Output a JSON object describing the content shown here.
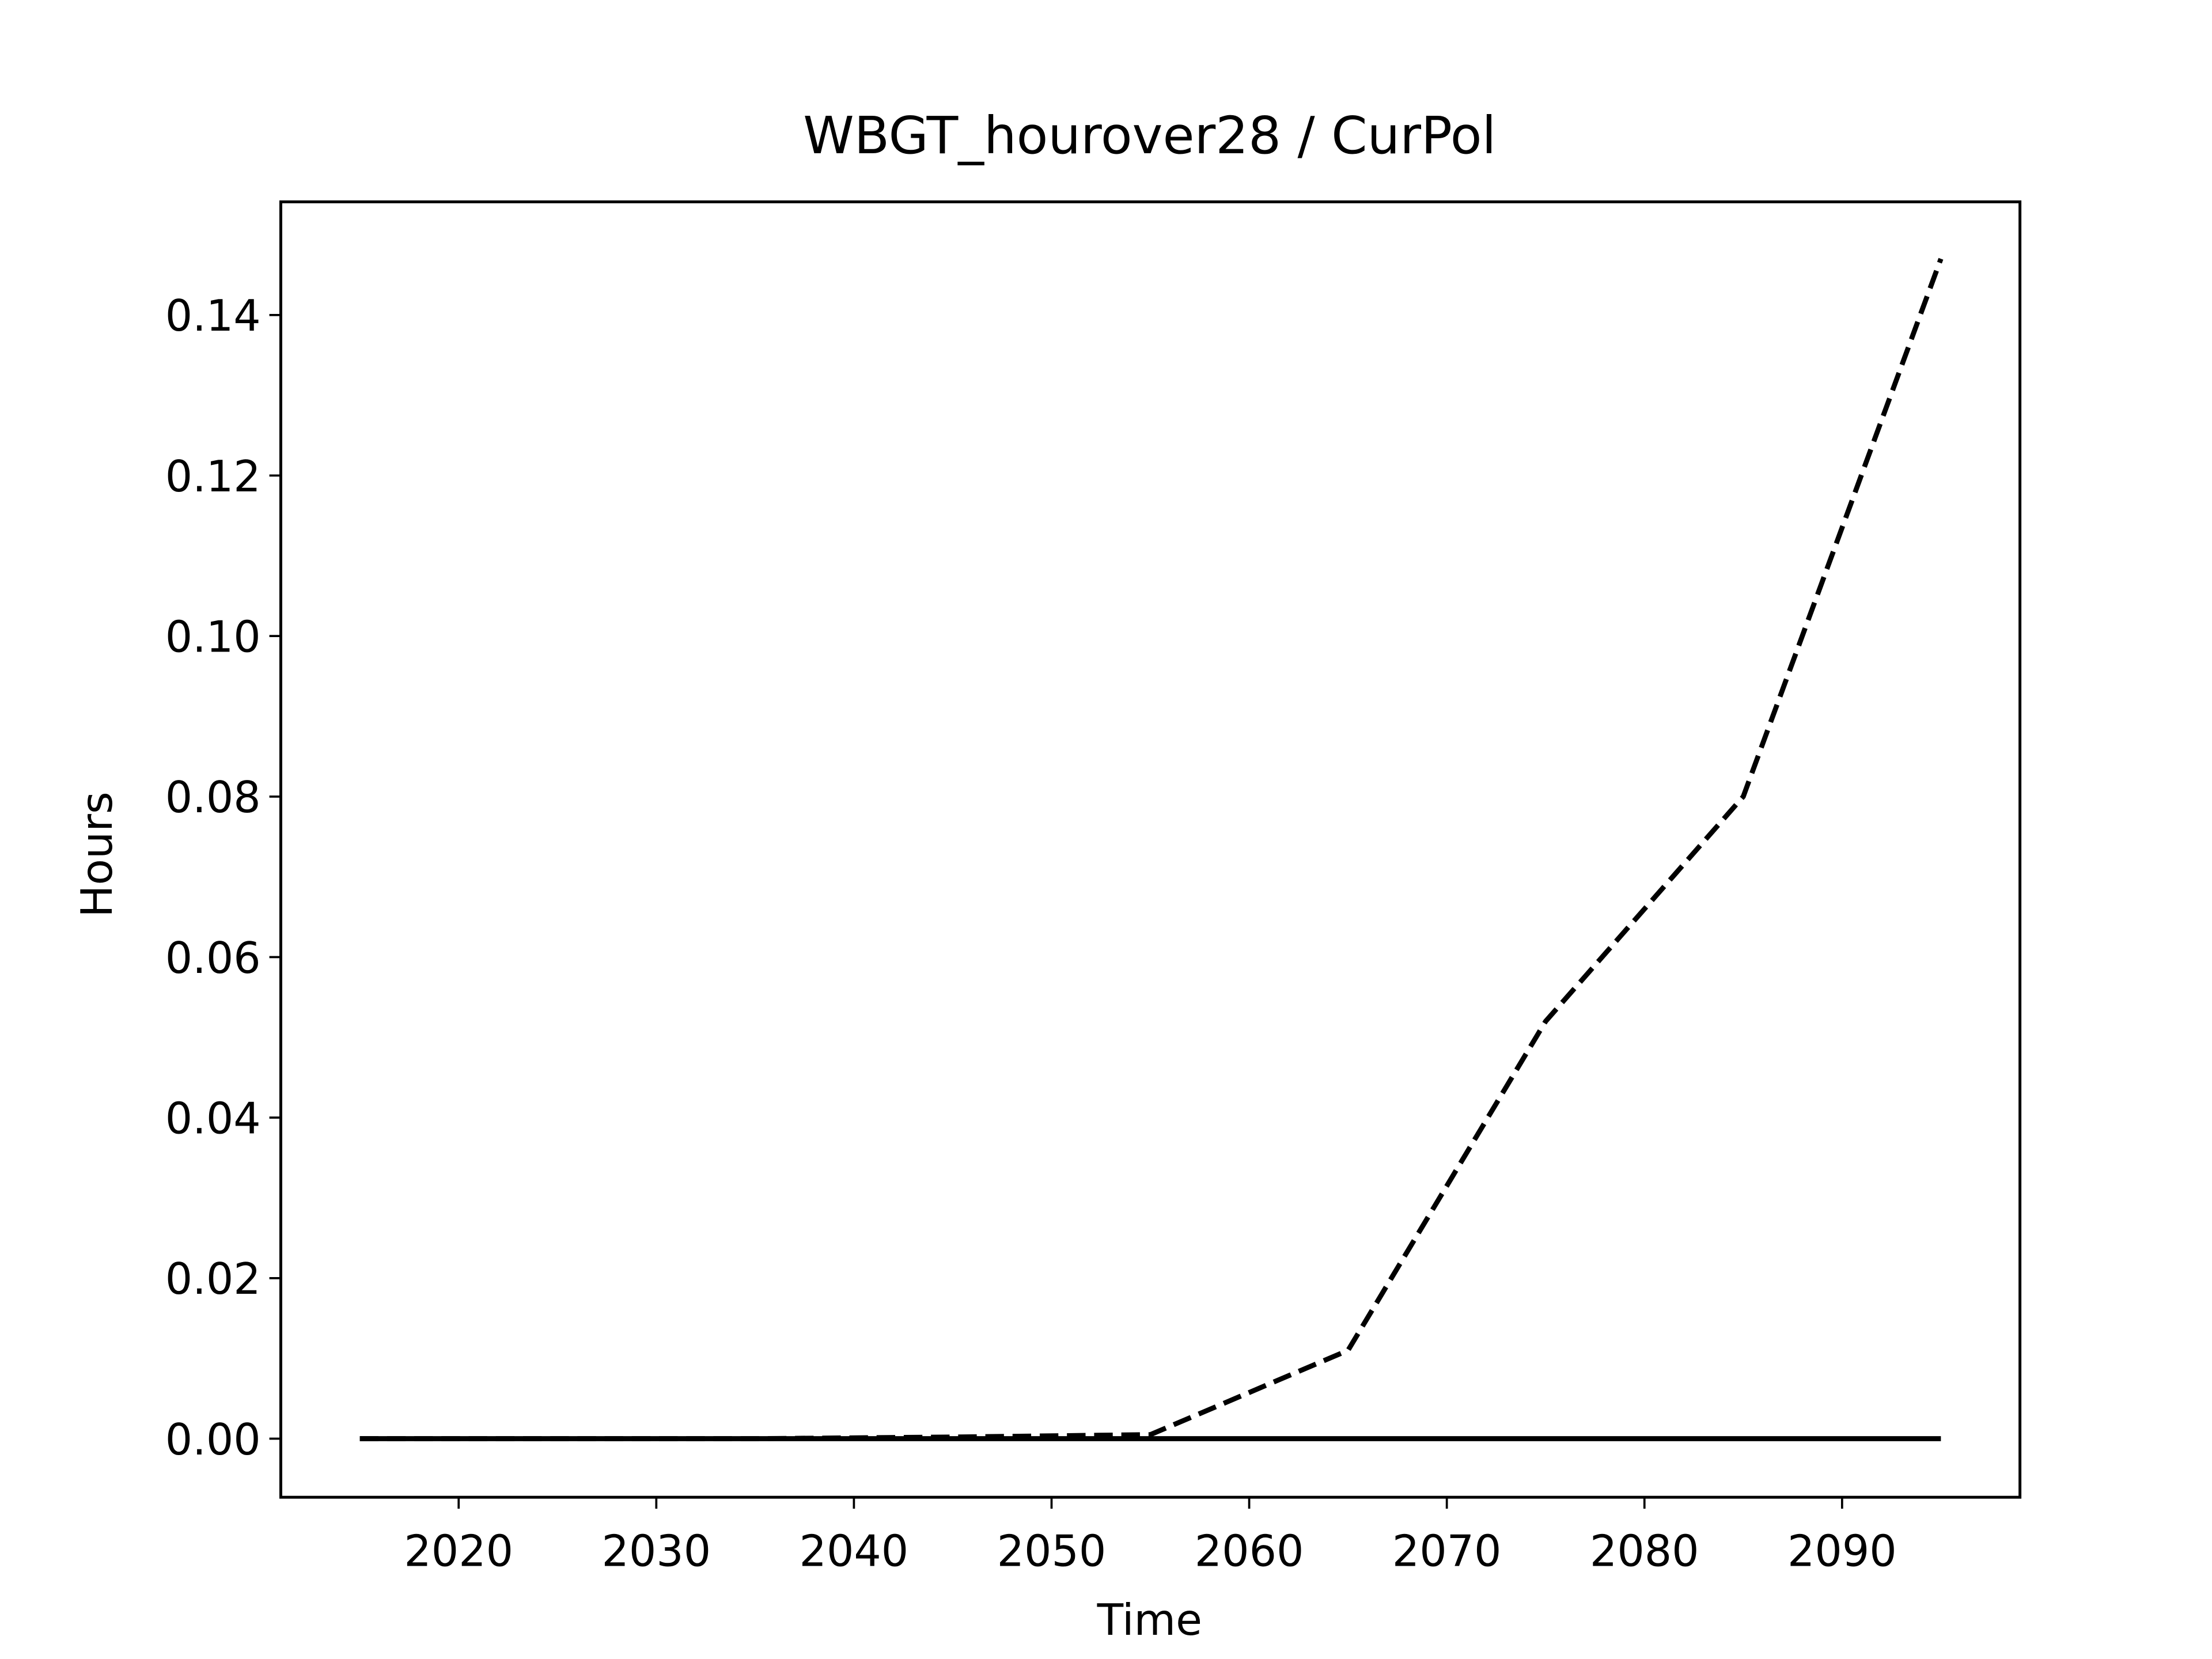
{
  "chart_data": {
    "type": "line",
    "title": "WBGT_hourover28 / CurPol",
    "x_label": "Time",
    "y_label": "Hours",
    "x": [
      2015,
      2025,
      2035,
      2045,
      2055,
      2065,
      2075,
      2085,
      2095
    ],
    "series": [
      {
        "color": "#000000",
        "linestyle": "dashed",
        "values": [
          0,
          0,
          0,
          0.0002,
          0.0005,
          0.011,
          0.052,
          0.08,
          0.147
        ]
      },
      {
        "color": "#000000",
        "linestyle": "solid",
        "values": [
          0,
          0,
          0,
          0,
          0,
          0,
          0,
          0,
          0
        ]
      }
    ],
    "xlim": [
      2011,
      2099
    ],
    "xticks": [
      2020,
      2030,
      2040,
      2050,
      2060,
      2070,
      2080,
      2090
    ],
    "ylim": [
      -0.0073,
      0.1541
    ],
    "yticks": [
      {
        "value": 0,
        "label": "0.00"
      },
      {
        "value": 0.02,
        "label": "0.02"
      },
      {
        "value": 0.04,
        "label": "0.04"
      },
      {
        "value": 0.06,
        "label": "0.06"
      },
      {
        "value": 0.08,
        "label": "0.08"
      },
      {
        "value": 0.1,
        "label": "0.10"
      },
      {
        "value": 0.12,
        "label": "0.12"
      },
      {
        "value": 0.14,
        "label": "0.14"
      }
    ],
    "grid": false
  }
}
